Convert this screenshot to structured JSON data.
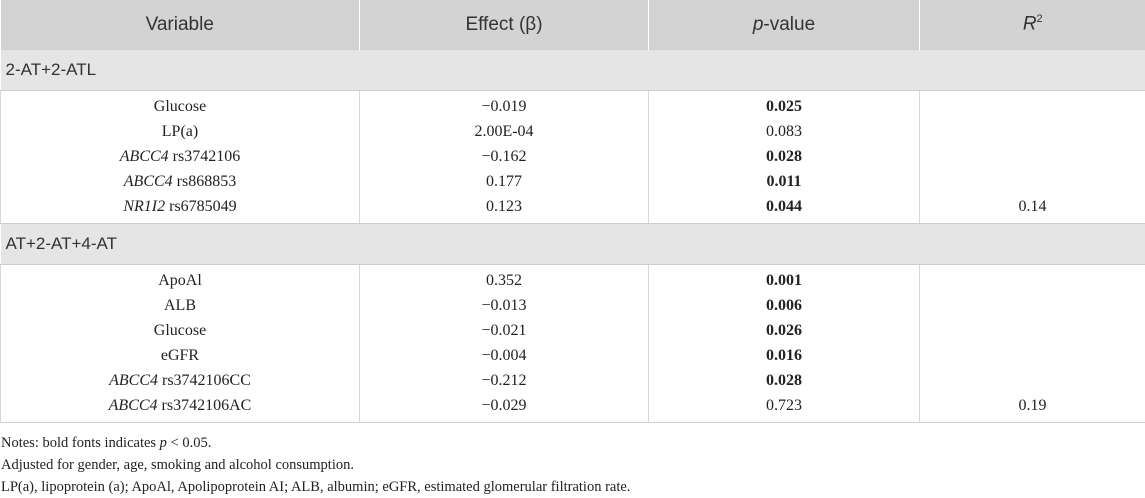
{
  "table": {
    "headers": {
      "variable": "Variable",
      "effect": "Effect (β)",
      "pvalue_italic": "p",
      "pvalue_rest": "-value",
      "r2_base": "R",
      "r2_sup": "2"
    },
    "groups": [
      {
        "label": "2-AT+2-ATL",
        "rows": [
          {
            "gene": "",
            "variable": "Glucose",
            "effect": "−0.019",
            "p": "0.025",
            "p_bold": true,
            "r2": ""
          },
          {
            "gene": "",
            "variable": "LP(a)",
            "effect": "2.00E-04",
            "p": "0.083",
            "p_bold": false,
            "r2": ""
          },
          {
            "gene": "ABCC4",
            "variable": " rs3742106",
            "effect": "−0.162",
            "p": "0.028",
            "p_bold": true,
            "r2": ""
          },
          {
            "gene": "ABCC4",
            "variable": " rs868853",
            "effect": "0.177",
            "p": "0.011",
            "p_bold": true,
            "r2": ""
          },
          {
            "gene": "NR1I2",
            "variable": " rs6785049",
            "effect": "0.123",
            "p": "0.044",
            "p_bold": true,
            "r2": "0.14"
          }
        ]
      },
      {
        "label": "AT+2-AT+4-AT",
        "rows": [
          {
            "gene": "",
            "variable": "ApoAl",
            "effect": "0.352",
            "p": "0.001",
            "p_bold": true,
            "r2": ""
          },
          {
            "gene": "",
            "variable": "ALB",
            "effect": "−0.013",
            "p": "0.006",
            "p_bold": true,
            "r2": ""
          },
          {
            "gene": "",
            "variable": "Glucose",
            "effect": "−0.021",
            "p": "0.026",
            "p_bold": true,
            "r2": ""
          },
          {
            "gene": "",
            "variable": "eGFR",
            "effect": "−0.004",
            "p": "0.016",
            "p_bold": true,
            "r2": ""
          },
          {
            "gene": "ABCC4",
            "variable": " rs3742106CC",
            "effect": "−0.212",
            "p": "0.028",
            "p_bold": true,
            "r2": ""
          },
          {
            "gene": "ABCC4",
            "variable": " rs3742106AC",
            "effect": "−0.029",
            "p": "0.723",
            "p_bold": false,
            "r2": "0.19"
          }
        ]
      }
    ]
  },
  "notes": {
    "line1_prefix": "Notes: bold fonts indicates ",
    "line1_p": "p",
    "line1_suffix": " < 0.05.",
    "line2": "Adjusted for gender, age, smoking and alcohol consumption.",
    "line3": "LP(a), lipoprotein (a); ApoAl, Apolipoprotein AI; ALB, albumin; eGFR, estimated glomerular filtration rate."
  }
}
